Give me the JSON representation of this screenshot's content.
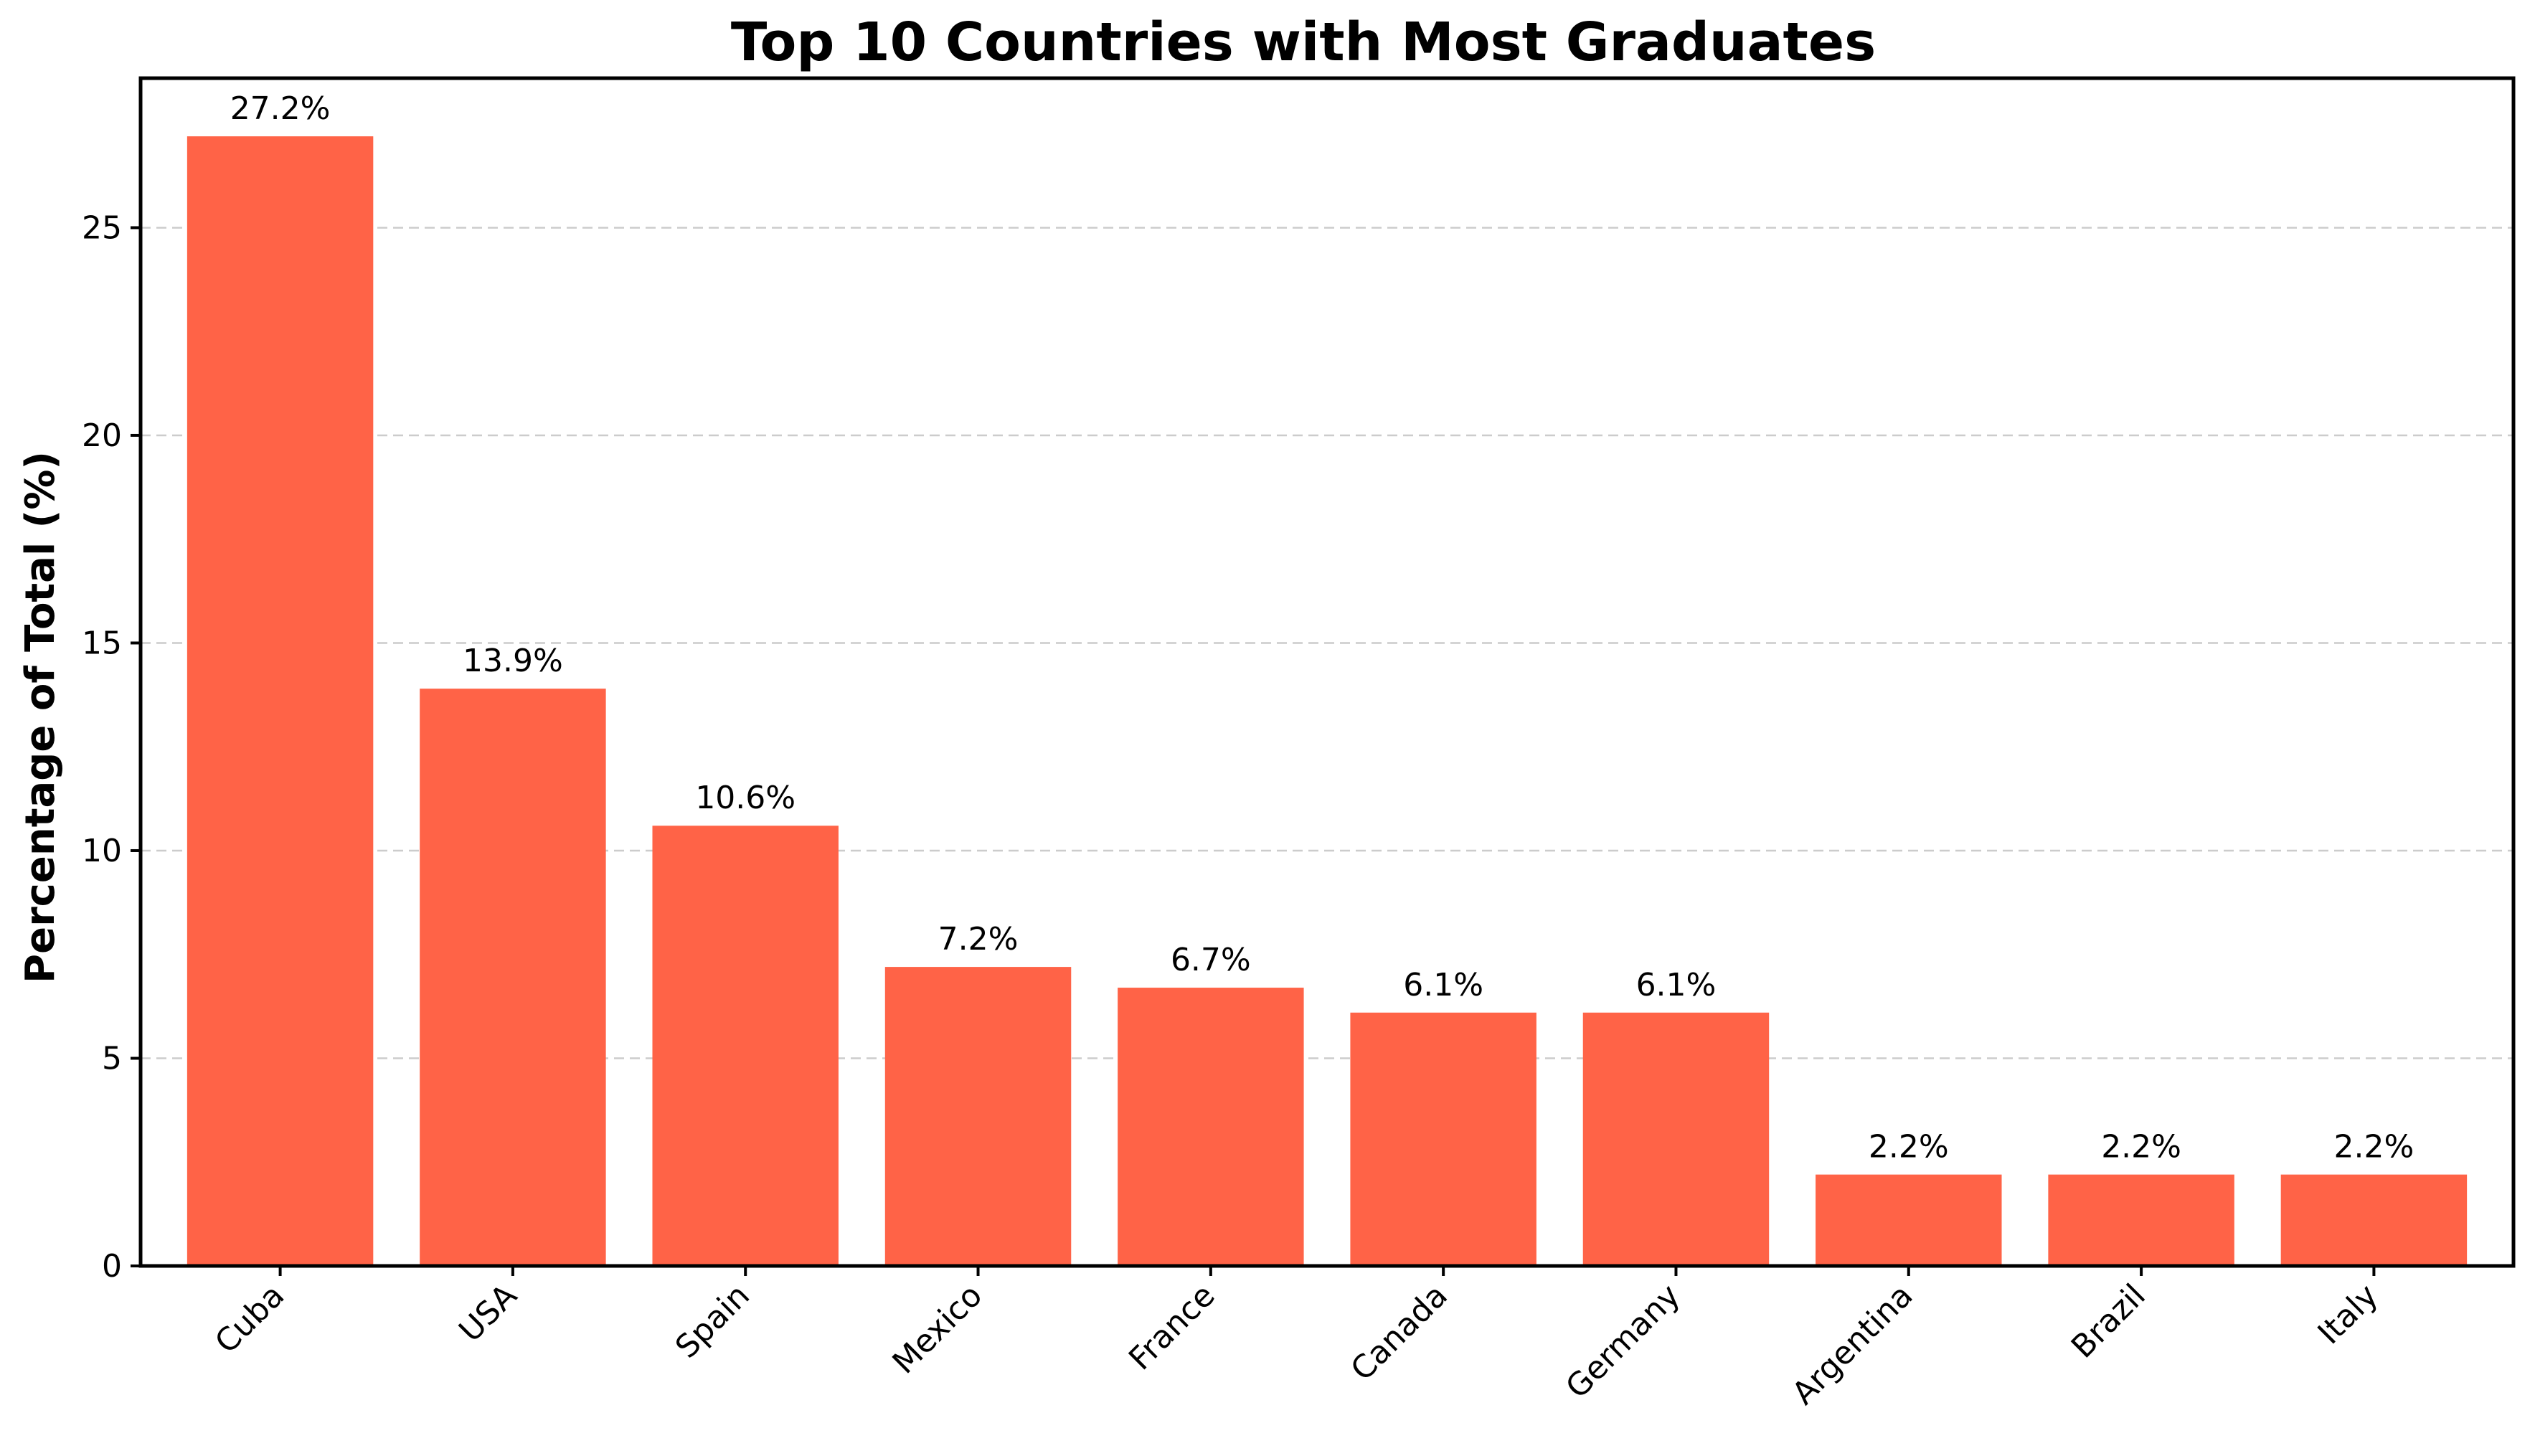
{
  "chart_data": {
    "type": "bar",
    "title": "Top 10 Countries with Most Graduates",
    "xlabel": "",
    "ylabel": "Percentage of Total (%)",
    "categories": [
      "Cuba",
      "USA",
      "Spain",
      "Mexico",
      "France",
      "Canada",
      "Germany",
      "Argentina",
      "Brazil",
      "Italy"
    ],
    "values": [
      27.2,
      13.9,
      10.6,
      7.2,
      6.7,
      6.1,
      6.1,
      2.2,
      2.2,
      2.2
    ],
    "data_labels": [
      "27.2%",
      "13.9%",
      "10.6%",
      "7.2%",
      "6.7%",
      "6.1%",
      "6.1%",
      "2.2%",
      "2.2%",
      "2.2%"
    ],
    "yticks": [
      0,
      5,
      10,
      15,
      20,
      25
    ],
    "ylim": [
      0,
      28.6
    ],
    "grid": "y-dashed",
    "bar_color": "#ff6347",
    "legend": "none"
  }
}
